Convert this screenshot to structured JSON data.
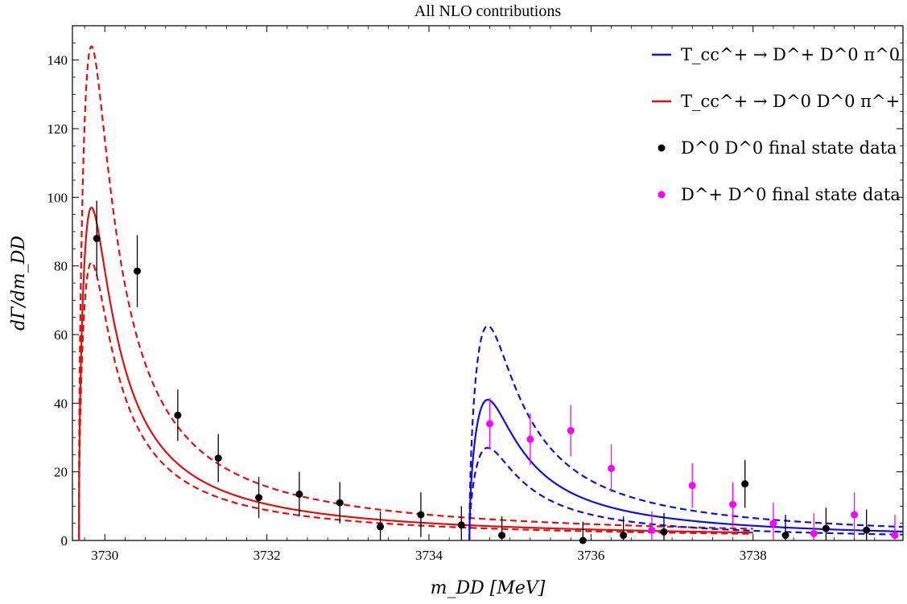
{
  "chart_data": {
    "type": "line",
    "title": "All NLO contributions",
    "xlabel": "m_DD [MeV]",
    "ylabel": "dΓ/dm_DD",
    "xlim": [
      3729.6,
      3739.85
    ],
    "ylim": [
      0,
      150
    ],
    "x_ticks": [
      3730,
      3732,
      3734,
      3736,
      3738
    ],
    "y_ticks": [
      0,
      20,
      40,
      60,
      80,
      100,
      120,
      140
    ],
    "legend_position": "top-right",
    "legend": [
      {
        "label": "T_cc^+ → D^+ D^0 π^0",
        "kind": "line",
        "color": "#1010e0"
      },
      {
        "label": "T_cc^+ → D^0 D^0 π^+",
        "kind": "line",
        "color": "#e01010"
      },
      {
        "label": "D^0 D^0 final state data",
        "kind": "point",
        "color": "#000000"
      },
      {
        "label": "D^+ D^0 final state data",
        "kind": "point",
        "color": "#ff00ff"
      }
    ],
    "series": [
      {
        "label": "T_cc^+ → D^0 D^0 π^+",
        "color": "#e01010",
        "style": "solid",
        "threshold": 3729.68,
        "peak_x": 3729.92,
        "peak_y": 97,
        "end_x": 3738.0
      },
      {
        "label": "T_cc^+ → D^0 D^0 π^+ (upper)",
        "color": "#e01010",
        "style": "dashed",
        "threshold": 3729.68,
        "peak_x": 3729.92,
        "peak_y": 144,
        "end_x": 3738.0
      },
      {
        "label": "T_cc^+ → D^0 D^0 π^+ (lower)",
        "color": "#e01010",
        "style": "dashed",
        "threshold": 3729.68,
        "peak_x": 3729.92,
        "peak_y": 81,
        "end_x": 3738.0
      },
      {
        "label": "T_cc^+ → D^+ D^0 π^0",
        "color": "#1010e0",
        "style": "solid",
        "threshold": 3734.5,
        "peak_x": 3734.85,
        "peak_y": 41,
        "end_x": 3739.85
      },
      {
        "label": "T_cc^+ → D^+ D^0 π^0 (upper)",
        "color": "#1010e0",
        "style": "dashed",
        "threshold": 3734.5,
        "peak_x": 3734.85,
        "peak_y": 62.5,
        "end_x": 3739.85
      },
      {
        "label": "T_cc^+ → D^+ D^0 π^0 (lower)",
        "color": "#1010e0",
        "style": "dashed",
        "threshold": 3734.5,
        "peak_x": 3734.85,
        "peak_y": 27,
        "end_x": 3739.85
      }
    ],
    "data_points": [
      {
        "label": "D^0 D^0 final state data",
        "color": "#000000",
        "points": [
          [
            3729.9,
            88,
            11
          ],
          [
            3730.4,
            78.5,
            10.5
          ],
          [
            3730.9,
            36.5,
            7.5
          ],
          [
            3731.4,
            24,
            7
          ],
          [
            3731.9,
            12.5,
            6
          ],
          [
            3732.4,
            13.5,
            6.5
          ],
          [
            3732.9,
            11,
            6
          ],
          [
            3733.4,
            4,
            4.5
          ],
          [
            3733.9,
            7.5,
            6.5
          ],
          [
            3734.4,
            4.5,
            5.5
          ],
          [
            3734.9,
            1.5,
            5.5
          ],
          [
            3735.9,
            0,
            5.5
          ],
          [
            3736.4,
            1.5,
            5.5
          ],
          [
            3736.9,
            2.5,
            5.5
          ],
          [
            3737.9,
            16.5,
            7
          ],
          [
            3738.4,
            1.5,
            6
          ],
          [
            3738.9,
            3.5,
            6
          ],
          [
            3739.4,
            3,
            6
          ]
        ]
      },
      {
        "label": "D^+ D^0 final state data",
        "color": "#ff00ff",
        "points": [
          [
            3734.75,
            34,
            7.5
          ],
          [
            3735.25,
            29.5,
            7.5
          ],
          [
            3735.75,
            32,
            7.5
          ],
          [
            3736.25,
            21,
            7
          ],
          [
            3736.75,
            3,
            5.5
          ],
          [
            3737.25,
            16,
            6.5
          ],
          [
            3737.75,
            10.5,
            6.5
          ],
          [
            3738.25,
            5,
            6
          ],
          [
            3738.75,
            2,
            6
          ],
          [
            3739.25,
            7.5,
            6.5
          ],
          [
            3739.75,
            1.5,
            6
          ]
        ]
      }
    ]
  }
}
